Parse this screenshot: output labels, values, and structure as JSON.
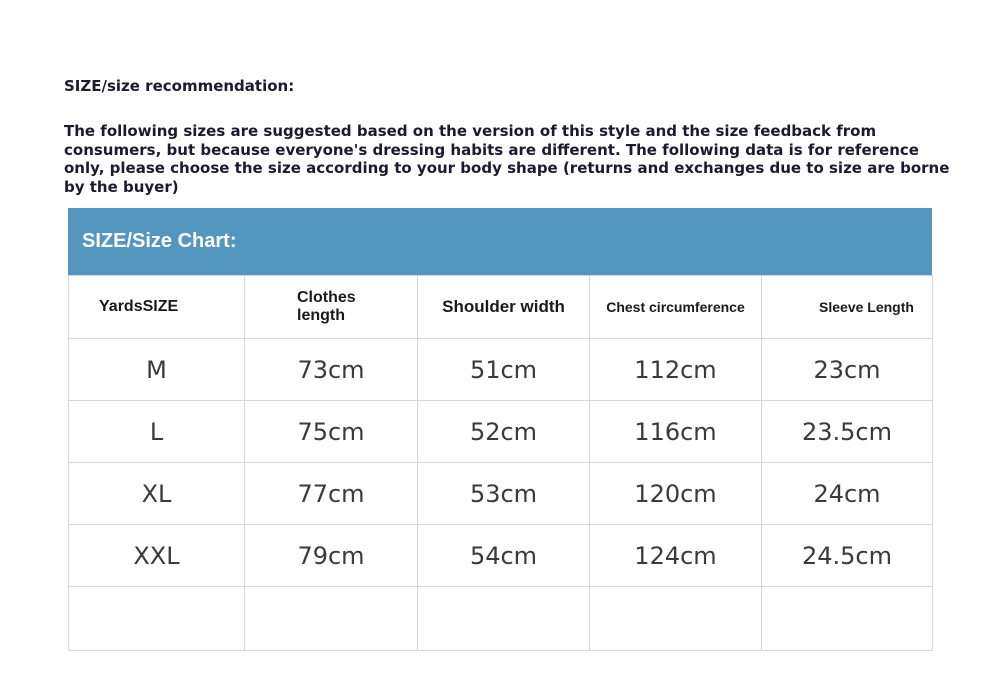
{
  "title": "SIZE/size recommendation:",
  "description": "The following sizes are suggested based on the version of this style and the size feedback from consumers, but because everyone's dressing habits are different. The following data is for reference only, please choose the size according to your body shape (returns and exchanges due to size are borne by the buyer)",
  "chart": {
    "header": "SIZE/Size Chart:",
    "header_color": "#5596bf",
    "columns": [
      "YardsSIZE",
      "Clothes length",
      "Shoulder width",
      "Chest circumference",
      "Sleeve Length"
    ],
    "rows": [
      [
        "M",
        "73cm",
        "51cm",
        "112cm",
        "23cm"
      ],
      [
        "L",
        "75cm",
        "52cm",
        "116cm",
        "23.5cm"
      ],
      [
        "XL",
        "77cm",
        "53cm",
        "120cm",
        "24cm"
      ],
      [
        "XXL",
        "79cm",
        "54cm",
        "124cm",
        "24.5cm"
      ]
    ]
  }
}
